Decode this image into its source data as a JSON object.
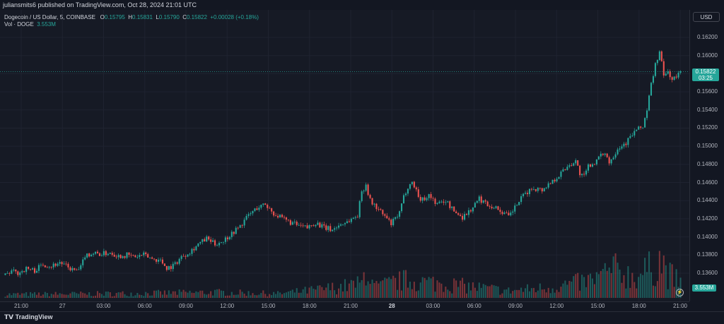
{
  "header": {
    "publish_text": "juliansmits6 published on TradingView.com, Oct 28, 2024 21:01 UTC"
  },
  "legend": {
    "symbol": "Dogecoin / US Dollar, 5, COINBASE",
    "open_key": "O",
    "open": "0.15795",
    "high_key": "H",
    "high": "0.15831",
    "low_key": "L",
    "low": "0.15790",
    "close_key": "C",
    "close": "0.15822",
    "change": "+0.00028 (+0.18%)",
    "vol_label": "Vol · DOGE",
    "vol_value": "3.553M"
  },
  "currency_button": "USD",
  "last_price": {
    "price": "0.15822",
    "countdown": "03:25"
  },
  "volume_badge": "3.553M",
  "footer": {
    "brand": "TradingView"
  },
  "colors": {
    "up": "#26a69a",
    "down": "#ef5350",
    "background": "#161a25",
    "grid": "#1f2330"
  },
  "chart_data": {
    "type": "candlestick",
    "symbol": "DOGE/USD",
    "interval": "5",
    "y_ticks": [
      "0.16200",
      "0.16000",
      "0.15800",
      "0.15600",
      "0.15400",
      "0.15200",
      "0.15000",
      "0.14800",
      "0.14600",
      "0.14400",
      "0.14200",
      "0.14000",
      "0.13800",
      "0.13600"
    ],
    "ylim": [
      0.1344,
      0.164
    ],
    "x_ticks": [
      {
        "label": "21:00",
        "bold": false
      },
      {
        "label": "27",
        "bold": false
      },
      {
        "label": "03:00",
        "bold": false
      },
      {
        "label": "06:00",
        "bold": false
      },
      {
        "label": "09:00",
        "bold": false
      },
      {
        "label": "12:00",
        "bold": false
      },
      {
        "label": "15:00",
        "bold": false
      },
      {
        "label": "18:00",
        "bold": false
      },
      {
        "label": "21:00",
        "bold": false
      },
      {
        "label": "28",
        "bold": true
      },
      {
        "label": "03:00",
        "bold": false
      },
      {
        "label": "06:00",
        "bold": false
      },
      {
        "label": "09:00",
        "bold": false
      },
      {
        "label": "12:00",
        "bold": false
      },
      {
        "label": "15:00",
        "bold": false
      },
      {
        "label": "18:00",
        "bold": false
      },
      {
        "label": "21:00",
        "bold": false
      }
    ],
    "price_path": [
      [
        0,
        0.1358
      ],
      [
        3,
        0.1362
      ],
      [
        6,
        0.136
      ],
      [
        10,
        0.1365
      ],
      [
        14,
        0.1363
      ],
      [
        18,
        0.137
      ],
      [
        22,
        0.1368
      ],
      [
        26,
        0.1372
      ],
      [
        30,
        0.1366
      ],
      [
        34,
        0.1362
      ],
      [
        36,
        0.1366
      ],
      [
        38,
        0.138
      ],
      [
        42,
        0.1382
      ],
      [
        46,
        0.1381
      ],
      [
        50,
        0.1383
      ],
      [
        54,
        0.1379
      ],
      [
        58,
        0.138
      ],
      [
        62,
        0.1378
      ],
      [
        66,
        0.138
      ],
      [
        70,
        0.1376
      ],
      [
        74,
        0.1374
      ],
      [
        77,
        0.1366
      ],
      [
        80,
        0.1368
      ],
      [
        84,
        0.1378
      ],
      [
        88,
        0.1384
      ],
      [
        92,
        0.1392
      ],
      [
        96,
        0.1398
      ],
      [
        100,
        0.1392
      ],
      [
        104,
        0.1396
      ],
      [
        108,
        0.1404
      ],
      [
        112,
        0.1412
      ],
      [
        116,
        0.1424
      ],
      [
        120,
        0.1432
      ],
      [
        124,
        0.1436
      ],
      [
        128,
        0.1426
      ],
      [
        132,
        0.142
      ],
      [
        136,
        0.1416
      ],
      [
        140,
        0.1412
      ],
      [
        144,
        0.141
      ],
      [
        148,
        0.1416
      ],
      [
        152,
        0.141
      ],
      [
        156,
        0.1408
      ],
      [
        160,
        0.1414
      ],
      [
        164,
        0.1418
      ],
      [
        168,
        0.1424
      ],
      [
        170,
        0.145
      ],
      [
        172,
        0.1458
      ],
      [
        174,
        0.144
      ],
      [
        178,
        0.143
      ],
      [
        182,
        0.142
      ],
      [
        184,
        0.1414
      ],
      [
        188,
        0.1426
      ],
      [
        190,
        0.1444
      ],
      [
        192,
        0.1456
      ],
      [
        194,
        0.146
      ],
      [
        196,
        0.1452
      ],
      [
        198,
        0.144
      ],
      [
        202,
        0.1446
      ],
      [
        206,
        0.1436
      ],
      [
        210,
        0.144
      ],
      [
        214,
        0.1428
      ],
      [
        218,
        0.1422
      ],
      [
        222,
        0.143
      ],
      [
        226,
        0.1442
      ],
      [
        230,
        0.1436
      ],
      [
        234,
        0.1432
      ],
      [
        238,
        0.1426
      ],
      [
        240,
        0.1422
      ],
      [
        244,
        0.1436
      ],
      [
        248,
        0.1448
      ],
      [
        252,
        0.1454
      ],
      [
        256,
        0.1452
      ],
      [
        260,
        0.146
      ],
      [
        264,
        0.1468
      ],
      [
        268,
        0.1478
      ],
      [
        272,
        0.1484
      ],
      [
        274,
        0.147
      ],
      [
        276,
        0.1466
      ],
      [
        278,
        0.1478
      ],
      [
        282,
        0.1484
      ],
      [
        286,
        0.1494
      ],
      [
        288,
        0.1482
      ],
      [
        292,
        0.1498
      ],
      [
        296,
        0.1504
      ],
      [
        300,
        0.1516
      ],
      [
        304,
        0.1522
      ],
      [
        306,
        0.154
      ],
      [
        308,
        0.1568
      ],
      [
        310,
        0.159
      ],
      [
        312,
        0.1604
      ],
      [
        314,
        0.1578
      ],
      [
        316,
        0.1582
      ],
      [
        318,
        0.1574
      ],
      [
        320,
        0.1576
      ],
      [
        322,
        0.1582
      ]
    ],
    "volume_profile": [
      [
        0,
        0.5
      ],
      [
        50,
        0.6
      ],
      [
        100,
        0.8
      ],
      [
        130,
        0.6
      ],
      [
        150,
        1.2
      ],
      [
        170,
        2.0
      ],
      [
        172,
        4.5
      ],
      [
        176,
        1.5
      ],
      [
        190,
        2.5
      ],
      [
        210,
        2.0
      ],
      [
        240,
        1.0
      ],
      [
        260,
        1.5
      ],
      [
        280,
        2.5
      ],
      [
        290,
        4.0
      ],
      [
        300,
        3.0
      ],
      [
        310,
        4.5
      ],
      [
        312,
        5.5
      ],
      [
        316,
        3.5
      ],
      [
        322,
        2.0
      ]
    ],
    "volume_max": 6.0
  }
}
